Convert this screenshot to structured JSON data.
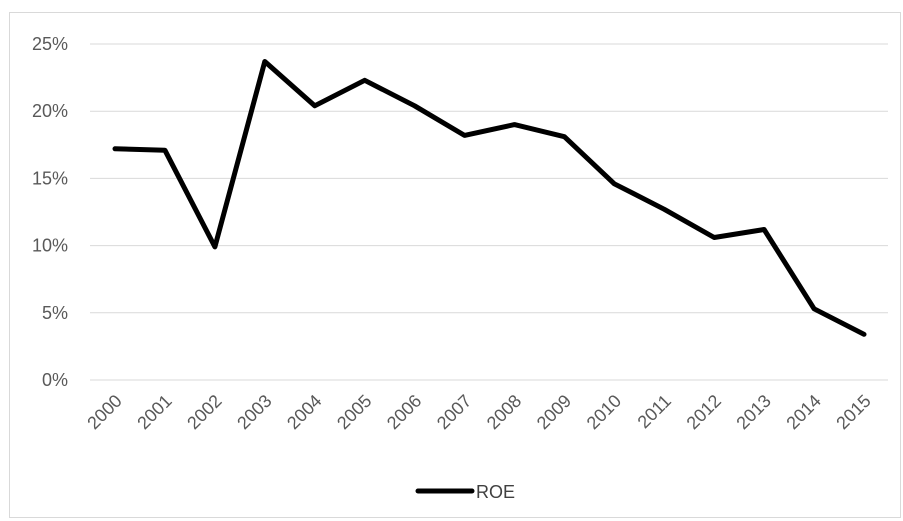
{
  "chart_data": {
    "type": "line",
    "title": "",
    "xlabel": "",
    "ylabel": "",
    "categories": [
      "2000",
      "2001",
      "2002",
      "2003",
      "2004",
      "2005",
      "2006",
      "2007",
      "2008",
      "2009",
      "2010",
      "2011",
      "2012",
      "2013",
      "2014",
      "2015"
    ],
    "series": [
      {
        "name": "ROE",
        "color": "#000000",
        "values": [
          17.2,
          17.1,
          9.9,
          23.7,
          20.4,
          22.3,
          20.4,
          18.2,
          19.0,
          18.1,
          14.6,
          12.7,
          10.6,
          11.2,
          5.3,
          3.4
        ]
      }
    ],
    "y_ticks": [
      0,
      5,
      10,
      15,
      20,
      25
    ],
    "y_tick_labels": [
      "0%",
      "5%",
      "10%",
      "15%",
      "20%",
      "25%"
    ],
    "ylim": [
      0,
      25
    ],
    "grid": true,
    "legend_position": "bottom"
  }
}
